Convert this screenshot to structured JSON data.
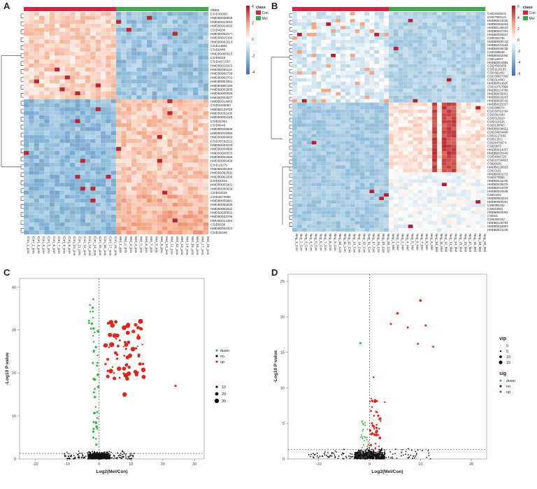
{
  "panel_labels": {
    "a": "A",
    "b": "B",
    "c": "C",
    "d": "D"
  },
  "chart_data": [
    {
      "type": "heatmap",
      "panel": "A",
      "legend_title": "class",
      "legend_classes": [
        "Con",
        "Mel"
      ],
      "colorbar_ticks": [
        "4",
        "2",
        "0",
        "-2",
        "-4"
      ],
      "columns": [
        "Con_1_pos",
        "Con_2_pos",
        "Con_3_pos",
        "Con_4_pos",
        "Con_5_pos",
        "Con_6_pos",
        "Con_7_pos",
        "Con_8_pos",
        "Con_9_pos",
        "Con_10_pos",
        "Con_11_pos",
        "Con_12_pos",
        "Con_13_pos",
        "Con_14_pos",
        "Con_15_pos",
        "Con_16_pos",
        "Con_17_pos",
        "Con_18_pos",
        "Mel_1_pos",
        "Mel_2_pos",
        "Mel_3_pos",
        "Mel_4_pos",
        "Mel_5_pos",
        "Mel_6_pos",
        "Mel_7_pos",
        "Mel_8_pos",
        "Mel_9_pos",
        "Mel_10_pos",
        "Mel_11_pos",
        "Mel_12_pos",
        "Mel_13_pos",
        "Mel_14_pos",
        "Mel_15_pos",
        "Mel_16_pos",
        "Mel_17_pos",
        "Mel_18_pos"
      ],
      "rows": [
        "CSID30000",
        "HMDB0036849",
        "HMDB0013010",
        "HMDB0014930",
        "CSID4936",
        "HMDB0061077",
        "HMDB0015166",
        "HMDB0062013",
        "CSID14806",
        "CSID6446",
        "HMDB0005510",
        "CSID6019",
        "CSID4471557",
        "HMDB0010323",
        "HMDB0061119",
        "HMDB0006738",
        "HMDB0003701",
        "HMDB0004361",
        "HMDB0000159",
        "HMDB0003908",
        "HMDB0000929",
        "HMDB0004827",
        "HMDB0014963",
        "CSID4445063",
        "HMDB0129729",
        "HMDB0031436",
        "HMDB0031315",
        "CSID21951",
        "CSID6048",
        "HMDB0029508",
        "HMDB0015065",
        "HMDB0004660",
        "CSID30791521",
        "HMDB0004234",
        "HMDB0004988",
        "HMDB0008076",
        "HMDB0002665",
        "HMDB0006409",
        "CSID13275",
        "HMDB0030460",
        "HMDB0062502",
        "HMDB0002205",
        "CSID91943",
        "HMDB0003301",
        "HMDB0000036",
        "CSID43229",
        "CSID4574666",
        "HMDB0059981",
        "HMDB0061635",
        "HMDB0061622",
        "HMDB0036501",
        "HMDB0034706",
        "HMDB0014454",
        "CSID5030",
        "HMDB0034323",
        "CSID29348"
      ]
    },
    {
      "type": "heatmap",
      "panel": "B",
      "legend_title": "class",
      "legend_classes": [
        "Con",
        "Mel"
      ],
      "colorbar_ticks": [
        "6",
        "4",
        "2",
        "0",
        "-2",
        "-4",
        "-6"
      ],
      "columns": [
        "Neg_1_Con",
        "Neg_2_Con",
        "Neg_3_Con",
        "Neg_4_Con",
        "Neg_5_Con",
        "Neg_6_Con",
        "Neg_7_Con",
        "Neg_8_Con",
        "Neg_9_Con",
        "Neg_10_Con",
        "Neg_11_Con",
        "Neg_12_Con",
        "Neg_13_Con",
        "Neg_14_Con",
        "Neg_15_Con",
        "Neg_16_Con",
        "Neg_17_Con",
        "Neg_18_Con",
        "Neg_19_Con",
        "Neg_20_Con",
        "Neg_1_Mel",
        "Neg_2_Mel",
        "Neg_3_Mel",
        "Neg_4_Mel",
        "Neg_5_Mel",
        "Neg_6_Mel",
        "Neg_7_Mel",
        "Neg_8_Mel",
        "Neg_9_Mel",
        "Neg_10_Mel",
        "Neg_11_Mel",
        "Neg_12_Mel",
        "Neg_13_Mel",
        "Neg_14_Mel",
        "Neg_15_Mel",
        "Neg_16_Mel",
        "Neg_17_Mel",
        "Neg_18_Mel",
        "Neg_19_Mel",
        "Neg_20_Mel"
      ],
      "rows": [
        "CSID4945571",
        "CSID7968124",
        "HMDB0033045",
        "HMDB0003254",
        "HMDB0128544",
        "HMDB0037331",
        "HMDB0030407",
        "CSID391795",
        "HMDB0000722",
        "HMDB0034163",
        "HMDB0038735",
        "CSID308648",
        "HMDB0002085",
        "CSID16997",
        "HMDB0004981",
        "CSID4590656",
        "CSID1128183",
        "CSID391482",
        "CSID30827069",
        "CSID314460",
        "HMDB0014600",
        "CSID10707064",
        "HMDB0124780",
        "HMDB0035001",
        "HMDB0029267",
        "HMDB0039742",
        "HMDB0015327",
        "CSID388074",
        "CSID30791764",
        "CSID391590",
        "CSID315910",
        "CSID210126",
        "CSID130060",
        "HMDB0039651",
        "CSID30934408",
        "CSID1127160",
        "CSID13331",
        "CSID4475574",
        "CSID3873",
        "HMDB0014037",
        "HMDB0035940",
        "CSID4944720",
        "CSID10739463",
        "CSID6635",
        "HMDB0129653",
        "CSID3161",
        "HMDB0001372",
        "CSID170606",
        "HMDB0015225",
        "HMDB0038270",
        "HMDB0034079",
        "HMDB0015548",
        "CSID2204",
        "HMDB0003423",
        "HMDB0000251",
        "CSID391342",
        "CSID43082",
        "HMDB0002002",
        "CSID61",
        "CSID384332",
        "HMDB0135784",
        "HMDB0034897",
        "HMDB0041430"
      ]
    },
    {
      "type": "scatter",
      "panel": "C",
      "title": "",
      "xlabel": "Log2(Mel/Con)",
      "ylabel": "-Log10 P-value",
      "xlim": [
        -25,
        33
      ],
      "ylim": [
        0,
        42
      ],
      "xticks": [
        -20,
        -10,
        0,
        10,
        20,
        30
      ],
      "yticks": [
        0,
        10,
        20,
        30,
        40
      ],
      "vline": 0,
      "hline": 1.3,
      "legend_labels": [
        "down",
        "no",
        "up"
      ],
      "legend_colors": [
        "#39b54a",
        "#111111",
        "#e2231a"
      ],
      "size_legend_labels": [
        "10",
        "20",
        "30"
      ],
      "size_legend_values": [
        10,
        20,
        30
      ]
    },
    {
      "type": "scatter",
      "panel": "D",
      "title": "",
      "xlabel": "Log2(Mel/Con)",
      "ylabel": "-Log10 P-value",
      "xlim": [
        -16,
        23
      ],
      "ylim": [
        0,
        26
      ],
      "xticks": [
        -10,
        0,
        10,
        20
      ],
      "yticks": [
        0,
        5,
        10,
        15,
        20,
        25
      ],
      "vline": 0,
      "hline": 1.3,
      "vip_title": "vip",
      "vip_labels": [
        "0",
        "5",
        "10",
        "15"
      ],
      "vip_values": [
        0,
        5,
        10,
        15
      ],
      "sig_title": "sig",
      "legend_labels": [
        "down",
        "no",
        "up"
      ],
      "legend_colors": [
        "#39b54a",
        "#111111",
        "#e2231a"
      ]
    }
  ]
}
